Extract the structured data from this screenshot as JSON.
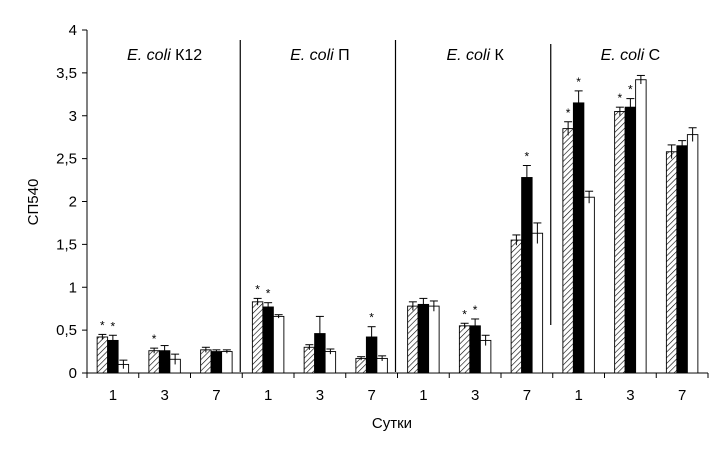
{
  "chart_data": {
    "type": "bar",
    "ylabel": "СП540",
    "xlabel": "Сутки",
    "ylim": [
      0,
      4
    ],
    "yticks": [
      "0",
      "0,5",
      "1",
      "1,5",
      "2",
      "2,5",
      "3",
      "3,5",
      "4"
    ],
    "grid": false,
    "groups": [
      {
        "title_italic": "E. coli",
        "title_suffix": "К12",
        "categories": [
          "1",
          "3",
          "7"
        ],
        "series": [
          {
            "pattern": "hatched",
            "values": [
              0.42,
              0.26,
              0.27
            ],
            "errors": [
              0.03,
              0.03,
              0.03
            ],
            "stars": [
              true,
              true,
              false
            ]
          },
          {
            "pattern": "black",
            "values": [
              0.38,
              0.26,
              0.25
            ],
            "errors": [
              0.06,
              0.06,
              0.02
            ],
            "stars": [
              true,
              false,
              false
            ]
          },
          {
            "pattern": "white",
            "values": [
              0.1,
              0.16,
              0.25
            ],
            "errors": [
              0.05,
              0.06,
              0.02
            ],
            "stars": [
              false,
              false,
              false
            ]
          }
        ]
      },
      {
        "title_italic": "E. coli",
        "title_suffix": "П",
        "categories": [
          "1",
          "3",
          "7"
        ],
        "series": [
          {
            "pattern": "hatched",
            "values": [
              0.83,
              0.3,
              0.17
            ],
            "errors": [
              0.04,
              0.03,
              0.02
            ],
            "stars": [
              true,
              false,
              false
            ]
          },
          {
            "pattern": "black",
            "values": [
              0.77,
              0.46,
              0.42
            ],
            "errors": [
              0.05,
              0.2,
              0.12
            ],
            "stars": [
              true,
              false,
              true
            ]
          },
          {
            "pattern": "white",
            "values": [
              0.66,
              0.25,
              0.17
            ],
            "errors": [
              0.02,
              0.03,
              0.03
            ],
            "stars": [
              false,
              false,
              false
            ]
          }
        ]
      },
      {
        "title_italic": "E. coli",
        "title_suffix": "К",
        "categories": [
          "1",
          "3",
          "7"
        ],
        "series": [
          {
            "pattern": "hatched",
            "values": [
              0.78,
              0.55,
              1.55
            ],
            "errors": [
              0.05,
              0.03,
              0.06
            ],
            "stars": [
              false,
              true,
              false
            ]
          },
          {
            "pattern": "black",
            "values": [
              0.8,
              0.55,
              2.28
            ],
            "errors": [
              0.07,
              0.08,
              0.14
            ],
            "stars": [
              false,
              true,
              true
            ]
          },
          {
            "pattern": "white",
            "values": [
              0.78,
              0.38,
              1.63
            ],
            "errors": [
              0.06,
              0.06,
              0.12
            ],
            "stars": [
              false,
              false,
              false
            ]
          }
        ]
      },
      {
        "title_italic": "E. coli",
        "title_suffix": "С",
        "categories": [
          "1",
          "3",
          "7"
        ],
        "series": [
          {
            "pattern": "hatched",
            "values": [
              2.85,
              3.05,
              2.58
            ],
            "errors": [
              0.08,
              0.05,
              0.08
            ],
            "stars": [
              true,
              true,
              false
            ]
          },
          {
            "pattern": "black",
            "values": [
              3.15,
              3.1,
              2.65
            ],
            "errors": [
              0.14,
              0.1,
              0.06
            ],
            "stars": [
              true,
              true,
              false
            ]
          },
          {
            "pattern": "white",
            "values": [
              2.05,
              3.42,
              2.78
            ],
            "errors": [
              0.07,
              0.05,
              0.08
            ],
            "stars": [
              false,
              false,
              false
            ]
          }
        ]
      }
    ],
    "star_symbol": "*"
  }
}
